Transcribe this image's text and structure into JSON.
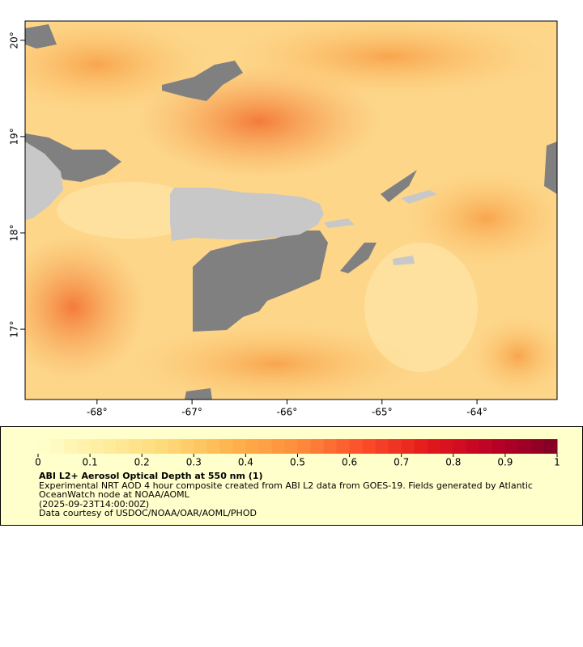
{
  "map": {
    "xlim": [
      -68.757,
      -63.157
    ],
    "ylim": [
      16.27,
      20.2
    ],
    "xticks": [
      {
        "value": -68,
        "label": "-68°"
      },
      {
        "value": -67,
        "label": "-67°"
      },
      {
        "value": -66,
        "label": "-66°"
      },
      {
        "value": -65,
        "label": "-65°"
      },
      {
        "value": -64,
        "label": "-64°"
      }
    ],
    "yticks": [
      {
        "value": 17,
        "label": "17°"
      },
      {
        "value": 18,
        "label": "18°"
      },
      {
        "value": 19,
        "label": "19°"
      },
      {
        "value": 20,
        "label": "20°"
      }
    ]
  },
  "colorbar": {
    "lim": [
      0,
      1
    ],
    "ticks": [
      0,
      0.1,
      0.2,
      0.3,
      0.4,
      0.5,
      0.6,
      0.7,
      0.8,
      0.9,
      1
    ],
    "colors": [
      "#ffffcc",
      "#ffeda0",
      "#fed976",
      "#feb24c",
      "#fd8d3c",
      "#fc4e2a",
      "#e31a1c",
      "#bd0026",
      "#800026"
    ],
    "title": "ABI L2+ Aerosol Optical Depth at 550 nm (1)",
    "description": "Experimental NRT AOD 4 hour composite created from ABI L2 data from GOES-19. Fields generated by Atlantic OceanWatch node at NOAA/AOML",
    "time": "(2025-09-23T14:00:00Z)",
    "credit": "Data courtesy of USDOC/NOAA/OAR/AOML/PHOD"
  }
}
